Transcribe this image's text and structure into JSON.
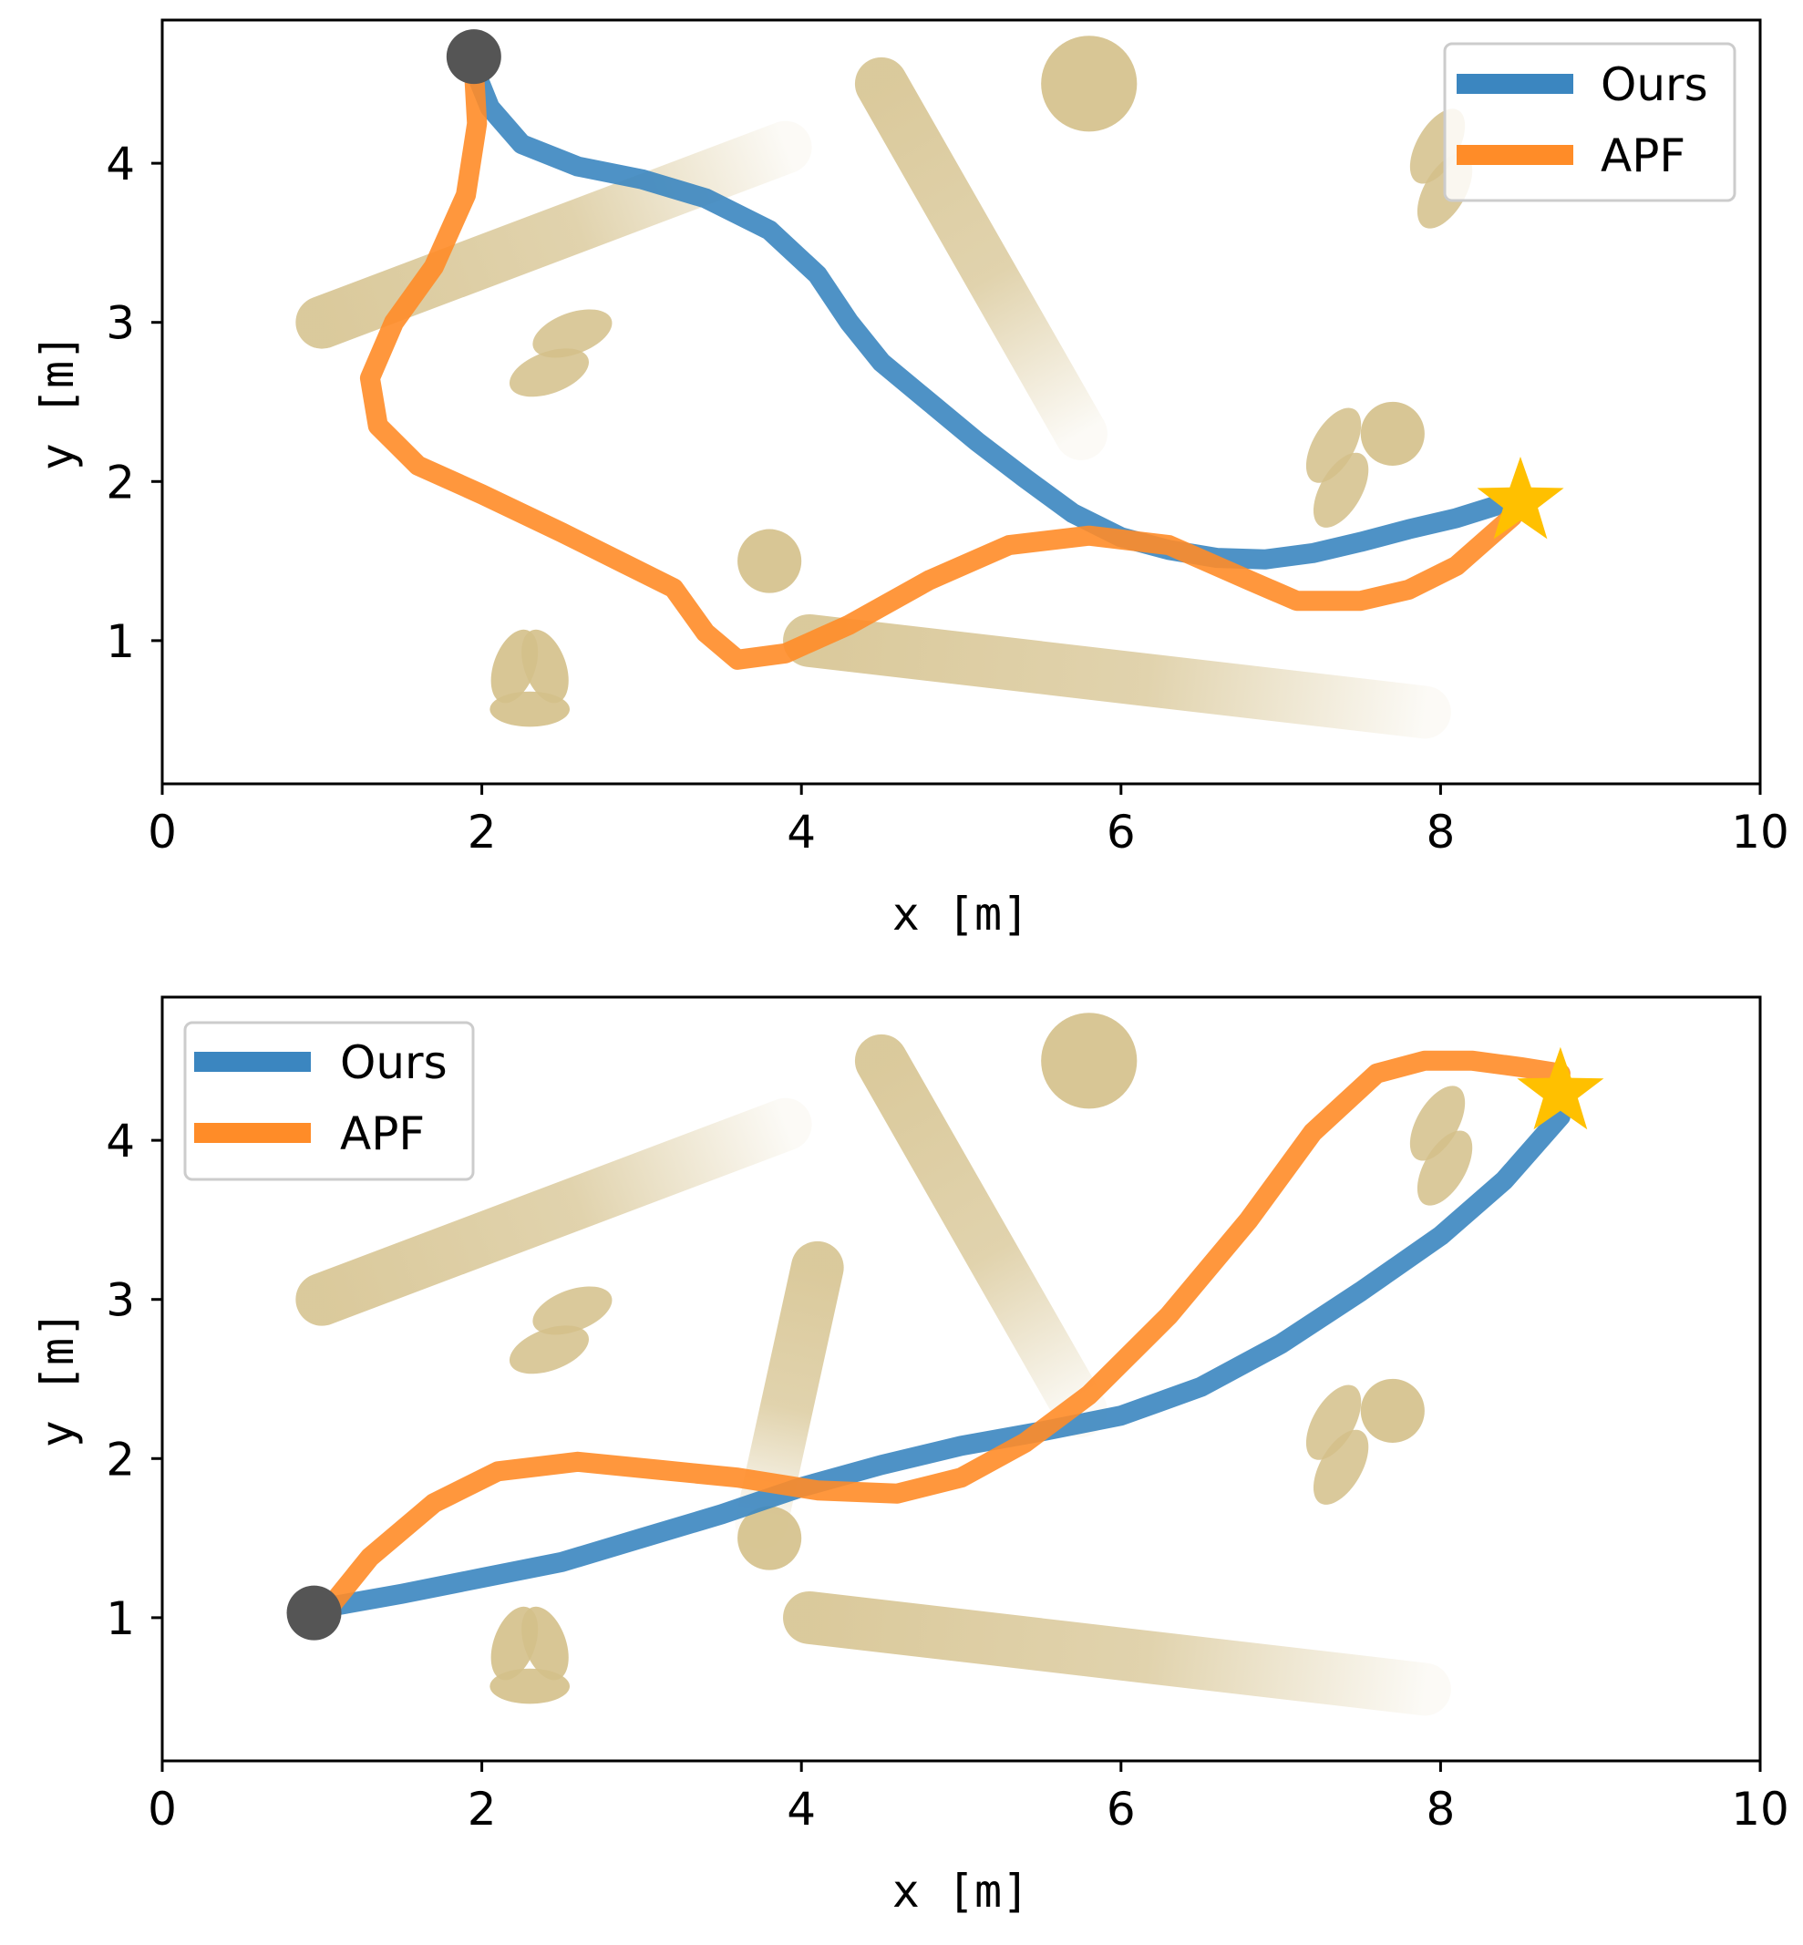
{
  "chart_data": [
    {
      "type": "line",
      "title": "",
      "xlabel": "x  [m]",
      "ylabel": "y  [m]",
      "xlim": [
        0,
        10
      ],
      "ylim": [
        0.1,
        4.9
      ],
      "xticks": [
        0,
        2,
        4,
        6,
        8,
        10
      ],
      "yticks": [
        1,
        2,
        3,
        4
      ],
      "legend": {
        "position": "top-right",
        "entries": [
          "Ours",
          "APF"
        ]
      },
      "start": [
        1.95,
        4.67
      ],
      "goal": [
        8.5,
        1.87
      ],
      "series": [
        {
          "name": "Ours",
          "color": "#3b86c0",
          "x": [
            1.95,
            2.05,
            2.25,
            2.6,
            3.0,
            3.4,
            3.8,
            4.1,
            4.3,
            4.5,
            4.8,
            5.1,
            5.4,
            5.7,
            6.0,
            6.3,
            6.6,
            6.9,
            7.2,
            7.5,
            7.8,
            8.1,
            8.45
          ],
          "y": [
            4.6,
            4.35,
            4.12,
            3.98,
            3.9,
            3.78,
            3.58,
            3.3,
            3.0,
            2.75,
            2.5,
            2.25,
            2.02,
            1.8,
            1.65,
            1.57,
            1.52,
            1.51,
            1.55,
            1.62,
            1.7,
            1.77,
            1.88
          ]
        },
        {
          "name": "APF",
          "color": "#ff8c28",
          "x": [
            1.95,
            1.97,
            1.9,
            1.7,
            1.45,
            1.3,
            1.35,
            1.6,
            2.0,
            2.5,
            2.9,
            3.2,
            3.4,
            3.6,
            3.9,
            4.3,
            4.8,
            5.3,
            5.8,
            6.3,
            6.8,
            7.1,
            7.5,
            7.8,
            8.1,
            8.45
          ],
          "y": [
            4.6,
            4.25,
            3.8,
            3.35,
            3.0,
            2.65,
            2.35,
            2.1,
            1.92,
            1.68,
            1.48,
            1.33,
            1.05,
            0.88,
            0.92,
            1.1,
            1.38,
            1.6,
            1.66,
            1.6,
            1.38,
            1.25,
            1.25,
            1.32,
            1.47,
            1.78
          ]
        }
      ]
    },
    {
      "type": "line",
      "title": "",
      "xlabel": "x  [m]",
      "ylabel": "y  [m]",
      "xlim": [
        0,
        10
      ],
      "ylim": [
        0.1,
        4.9
      ],
      "xticks": [
        0,
        2,
        4,
        6,
        8,
        10
      ],
      "yticks": [
        1,
        2,
        3,
        4
      ],
      "legend": {
        "position": "top-left",
        "entries": [
          "Ours",
          "APF"
        ]
      },
      "start": [
        0.95,
        1.03
      ],
      "goal": [
        8.75,
        4.3
      ],
      "series": [
        {
          "name": "Ours",
          "color": "#3b86c0",
          "x": [
            1.05,
            1.5,
            2.0,
            2.5,
            3.0,
            3.5,
            4.0,
            4.5,
            5.0,
            5.5,
            6.0,
            6.5,
            7.0,
            7.5,
            8.0,
            8.4,
            8.75
          ],
          "y": [
            1.07,
            1.15,
            1.25,
            1.35,
            1.5,
            1.65,
            1.82,
            1.96,
            2.08,
            2.17,
            2.27,
            2.45,
            2.72,
            3.05,
            3.4,
            3.75,
            4.15
          ]
        },
        {
          "name": "APF",
          "color": "#ff8c28",
          "x": [
            1.05,
            1.3,
            1.7,
            2.1,
            2.6,
            3.1,
            3.6,
            4.1,
            4.6,
            5.0,
            5.4,
            5.8,
            6.3,
            6.8,
            7.2,
            7.6,
            7.9,
            8.2,
            8.5,
            8.75
          ],
          "y": [
            1.07,
            1.38,
            1.72,
            1.92,
            1.98,
            1.93,
            1.88,
            1.8,
            1.78,
            1.88,
            2.1,
            2.4,
            2.9,
            3.5,
            4.05,
            4.42,
            4.5,
            4.5,
            4.46,
            4.42
          ]
        }
      ]
    }
  ],
  "obstacles": {
    "capsules": [
      [
        1.0,
        3.0,
        3.9,
        4.1
      ],
      [
        4.5,
        4.5,
        5.75,
        2.3
      ],
      [
        4.05,
        1.0,
        7.9,
        0.55
      ]
    ],
    "capsules_bottom_extra": [
      [
        4.1,
        3.2,
        3.75,
        1.6
      ]
    ],
    "discs": [
      [
        5.8,
        4.5
      ],
      [
        3.8,
        1.5
      ],
      [
        7.7,
        2.3
      ]
    ],
    "ellipse_pairs": [
      [
        2.5,
        2.82
      ],
      [
        7.35,
        2.1
      ],
      [
        8.0,
        3.98
      ]
    ],
    "ellipse_triads": [
      [
        2.3,
        0.75
      ]
    ]
  },
  "legend_labels": [
    "Ours",
    "APF"
  ]
}
